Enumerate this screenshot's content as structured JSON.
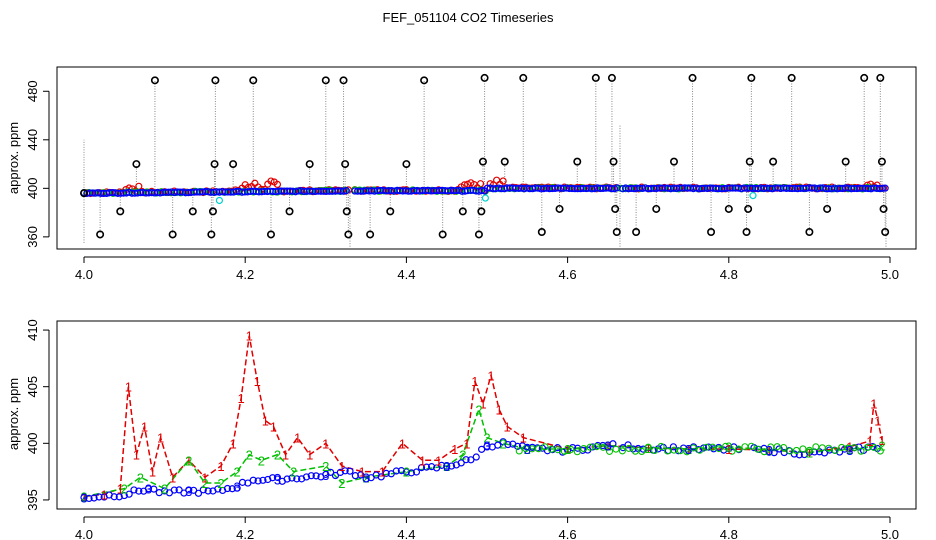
{
  "title": "FEF_051104  CO2 Timeseries",
  "colors": {
    "black": "#000000",
    "red": "#e00000",
    "green": "#00c000",
    "blue": "#0000ff",
    "cyan": "#00d0d0",
    "gray": "#8a8a8a"
  },
  "chart_data": [
    {
      "type": "scatter",
      "ylabel": "approx. ppm",
      "xlim": [
        4.0,
        5.0
      ],
      "ylim": [
        350,
        500
      ],
      "x_ticks": [
        "4.0",
        "4.2",
        "4.4",
        "4.6",
        "4.8",
        "5.0"
      ],
      "y_ticks": [
        "360",
        "400",
        "440",
        "480"
      ],
      "series": [
        {
          "style": "black circles, spikes",
          "points": [
            [
              4.0,
              396
            ],
            [
              4.02,
              362
            ],
            [
              4.045,
              381
            ],
            [
              4.065,
              420
            ],
            [
              4.088,
              489
            ],
            [
              4.11,
              362
            ],
            [
              4.135,
              381
            ],
            [
              4.158,
              362
            ],
            [
              4.16,
              381
            ],
            [
              4.162,
              420
            ],
            [
              4.163,
              489
            ],
            [
              4.185,
              420
            ],
            [
              4.21,
              489
            ],
            [
              4.232,
              362
            ],
            [
              4.255,
              381
            ],
            [
              4.28,
              420
            ],
            [
              4.3,
              489
            ],
            [
              4.322,
              489
            ],
            [
              4.324,
              420
            ],
            [
              4.326,
              381
            ],
            [
              4.328,
              362
            ],
            [
              4.355,
              362
            ],
            [
              4.38,
              381
            ],
            [
              4.4,
              420
            ],
            [
              4.422,
              489
            ],
            [
              4.445,
              362
            ],
            [
              4.47,
              381
            ],
            [
              4.49,
              362
            ],
            [
              4.493,
              381
            ],
            [
              4.495,
              422
            ],
            [
              4.497,
              491
            ],
            [
              4.522,
              422
            ],
            [
              4.545,
              491
            ],
            [
              4.568,
              364
            ],
            [
              4.59,
              383
            ],
            [
              4.612,
              422
            ],
            [
              4.635,
              491
            ],
            [
              4.655,
              491
            ],
            [
              4.657,
              422
            ],
            [
              4.659,
              383
            ],
            [
              4.661,
              364
            ],
            [
              4.685,
              364
            ],
            [
              4.71,
              383
            ],
            [
              4.732,
              422
            ],
            [
              4.755,
              491
            ],
            [
              4.778,
              364
            ],
            [
              4.8,
              383
            ],
            [
              4.822,
              364
            ],
            [
              4.824,
              383
            ],
            [
              4.826,
              422
            ],
            [
              4.828,
              491
            ],
            [
              4.855,
              422
            ],
            [
              4.878,
              491
            ],
            [
              4.9,
              364
            ],
            [
              4.922,
              383
            ],
            [
              4.945,
              422
            ],
            [
              4.968,
              491
            ],
            [
              4.988,
              491
            ],
            [
              4.99,
              422
            ],
            [
              4.992,
              383
            ],
            [
              4.994,
              364
            ]
          ]
        }
      ]
    },
    {
      "type": "line",
      "ylabel": "approx. ppm",
      "xlim": [
        4.0,
        5.0
      ],
      "ylim": [
        395,
        410
      ],
      "x_ticks": [
        "4.0",
        "4.2",
        "4.4",
        "4.6",
        "4.8",
        "5.0"
      ],
      "y_ticks": [
        "395",
        "400",
        "405",
        "410"
      ],
      "series": [
        {
          "marker": "1",
          "points": [
            [
              4.0,
              395.3
            ],
            [
              4.025,
              395.5
            ],
            [
              4.045,
              396
            ],
            [
              4.055,
              405
            ],
            [
              4.065,
              399
            ],
            [
              4.075,
              401.5
            ],
            [
              4.085,
              397.5
            ],
            [
              4.095,
              400.5
            ],
            [
              4.11,
              397
            ],
            [
              4.13,
              398.5
            ],
            [
              4.15,
              397
            ],
            [
              4.17,
              398
            ],
            [
              4.185,
              400
            ],
            [
              4.195,
              404
            ],
            [
              4.205,
              409.5
            ],
            [
              4.215,
              405.5
            ],
            [
              4.225,
              402
            ],
            [
              4.235,
              401.5
            ],
            [
              4.25,
              399
            ],
            [
              4.265,
              400.5
            ],
            [
              4.28,
              399
            ],
            [
              4.3,
              400
            ],
            [
              4.32,
              398
            ],
            [
              4.345,
              397.5
            ],
            [
              4.37,
              397.5
            ],
            [
              4.395,
              400
            ],
            [
              4.42,
              398.5
            ],
            [
              4.44,
              398.5
            ],
            [
              4.46,
              399.5
            ],
            [
              4.475,
              400
            ],
            [
              4.485,
              405.5
            ],
            [
              4.495,
              403.5
            ],
            [
              4.505,
              406
            ],
            [
              4.515,
              403
            ],
            [
              4.525,
              401.5
            ],
            [
              4.545,
              400.5
            ],
            [
              4.6,
              399.5
            ],
            [
              4.65,
              399.8
            ],
            [
              4.7,
              399.6
            ],
            [
              4.75,
              399.5
            ],
            [
              4.8,
              399.5
            ],
            [
              4.85,
              399.4
            ],
            [
              4.9,
              399.2
            ],
            [
              4.95,
              399.7
            ],
            [
              4.975,
              400.2
            ],
            [
              4.98,
              403.5
            ],
            [
              4.985,
              402
            ],
            [
              4.99,
              400.3
            ]
          ]
        },
        {
          "marker": "2",
          "points": [
            [
              4.0,
              395.3
            ],
            [
              4.05,
              396
            ],
            [
              4.07,
              397
            ],
            [
              4.1,
              396
            ],
            [
              4.13,
              398.5
            ],
            [
              4.15,
              396.5
            ],
            [
              4.17,
              396.5
            ],
            [
              4.19,
              397.5
            ],
            [
              4.205,
              399
            ],
            [
              4.22,
              398.5
            ],
            [
              4.24,
              399
            ],
            [
              4.26,
              397.5
            ],
            [
              4.3,
              398
            ],
            [
              4.32,
              396.5
            ],
            [
              4.35,
              397
            ],
            [
              4.4,
              397.5
            ],
            [
              4.45,
              398
            ],
            [
              4.47,
              399
            ],
            [
              4.49,
              403
            ],
            [
              4.5,
              400.5
            ],
            [
              4.52,
              400
            ],
            [
              4.55,
              399.5
            ],
            [
              4.6,
              399.5
            ],
            [
              4.65,
              399.8
            ],
            [
              4.7,
              399.6
            ],
            [
              4.75,
              399.5
            ],
            [
              4.8,
              399.7
            ],
            [
              4.85,
              399.4
            ],
            [
              4.9,
              399.2
            ],
            [
              4.95,
              399.5
            ],
            [
              4.99,
              399.8
            ]
          ]
        },
        {
          "marker": "3",
          "points": [
            [
              4.0,
              395.2
            ],
            [
              4.05,
              395.5
            ],
            [
              4.08,
              396
            ],
            [
              4.1,
              395.6
            ],
            [
              4.13,
              395.8
            ],
            [
              4.16,
              395.7
            ],
            [
              4.19,
              396.2
            ],
            [
              4.21,
              396.8
            ],
            [
              4.24,
              396.8
            ],
            [
              4.27,
              397
            ],
            [
              4.3,
              397.2
            ],
            [
              4.33,
              397.5
            ],
            [
              4.35,
              397
            ],
            [
              4.4,
              397.5
            ],
            [
              4.45,
              398
            ],
            [
              4.48,
              398.5
            ],
            [
              4.5,
              399.8
            ],
            [
              4.52,
              400
            ],
            [
              4.55,
              399.5
            ],
            [
              4.6,
              399.4
            ],
            [
              4.65,
              399.8
            ],
            [
              4.7,
              399.6
            ],
            [
              4.75,
              399.5
            ],
            [
              4.8,
              399.5
            ],
            [
              4.85,
              399.4
            ],
            [
              4.9,
              399.1
            ],
            [
              4.95,
              399.4
            ],
            [
              4.99,
              399.7
            ]
          ]
        }
      ]
    }
  ]
}
